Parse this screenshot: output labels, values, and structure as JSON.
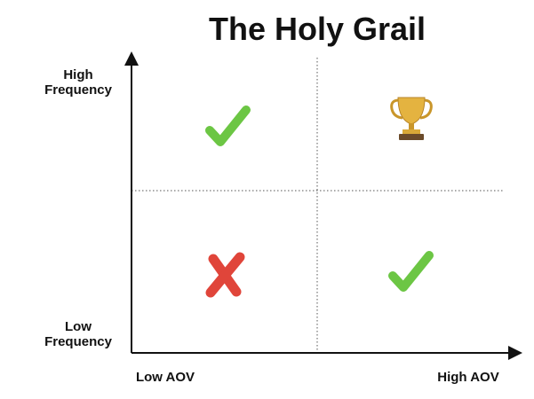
{
  "title": "The Holy Grail",
  "y_axis": {
    "top_label": [
      "High",
      "Frequency"
    ],
    "bottom_label": [
      "Low",
      "Frequency"
    ]
  },
  "x_axis": {
    "left_label": "Low AOV",
    "right_label": "High AOV"
  }
}
